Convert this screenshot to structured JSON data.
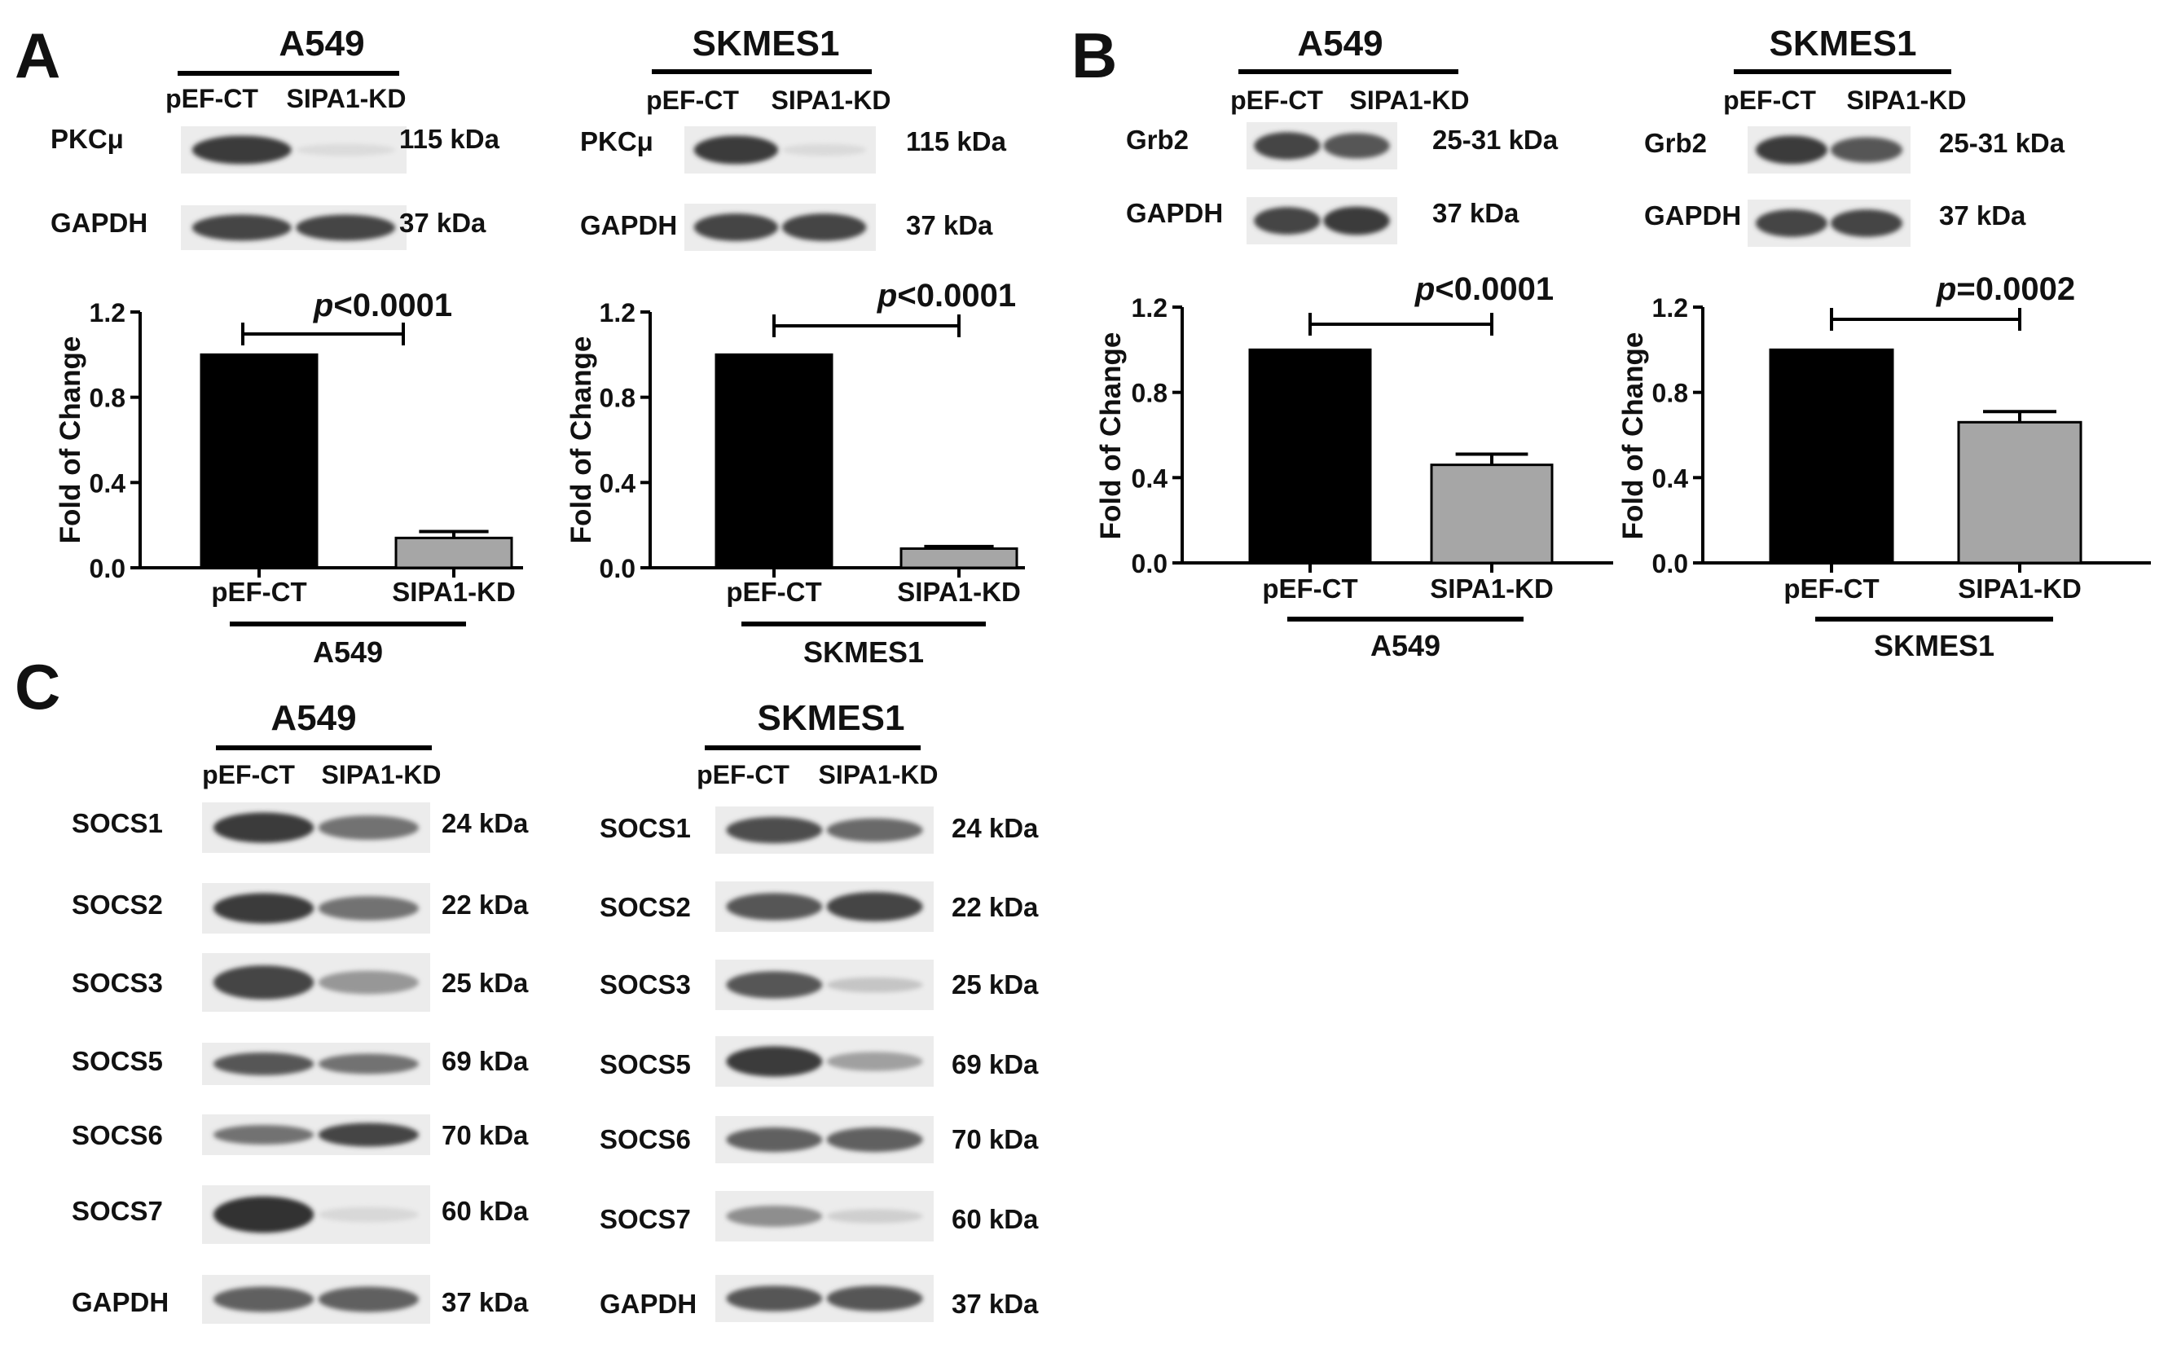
{
  "panels": {
    "A": {
      "letter": "A",
      "blots": [
        {
          "cell_line": "A549",
          "lanes": [
            "pEF-CT",
            "SIPA1-KD"
          ],
          "rows": [
            {
              "protein": "PKCμ",
              "size": "115 kDa",
              "bands": [
                0.9,
                0.03
              ]
            },
            {
              "protein": "GAPDH",
              "size": "37 kDa",
              "bands": [
                0.85,
                0.85
              ]
            }
          ]
        },
        {
          "cell_line": "SKMES1",
          "lanes": [
            "pEF-CT",
            "SIPA1-KD"
          ],
          "rows": [
            {
              "protein": "PKCμ",
              "size": "115 kDa",
              "bands": [
                0.9,
                0.04
              ]
            },
            {
              "protein": "GAPDH",
              "size": "37 kDa",
              "bands": [
                0.85,
                0.85
              ]
            }
          ]
        }
      ]
    },
    "B": {
      "letter": "B",
      "blots": [
        {
          "cell_line": "A549",
          "lanes": [
            "pEF-CT",
            "SIPA1-KD"
          ],
          "rows": [
            {
              "protein": "Grb2",
              "size": "25-31 kDa",
              "bands": [
                0.85,
                0.75
              ]
            },
            {
              "protein": "GAPDH",
              "size": "37 kDa",
              "bands": [
                0.85,
                0.9
              ]
            }
          ]
        },
        {
          "cell_line": "SKMES1",
          "lanes": [
            "pEF-CT",
            "SIPA1-KD"
          ],
          "rows": [
            {
              "protein": "Grb2",
              "size": "25-31 kDa",
              "bands": [
                0.9,
                0.75
              ]
            },
            {
              "protein": "GAPDH",
              "size": "37 kDa",
              "bands": [
                0.85,
                0.85
              ]
            }
          ]
        }
      ]
    },
    "C": {
      "letter": "C",
      "blots": [
        {
          "cell_line": "A549",
          "lanes": [
            "pEF-CT",
            "SIPA1-KD"
          ],
          "rows": [
            {
              "protein": "SOCS1",
              "size": "24 kDa",
              "bands": [
                0.9,
                0.6
              ]
            },
            {
              "protein": "SOCS2",
              "size": "22 kDa",
              "bands": [
                0.9,
                0.6
              ]
            },
            {
              "protein": "SOCS3",
              "size": "25 kDa",
              "bands": [
                0.85,
                0.4
              ]
            },
            {
              "protein": "SOCS5",
              "size": "69 kDa",
              "bands": [
                0.75,
                0.6
              ]
            },
            {
              "protein": "SOCS6",
              "size": "70 kDa",
              "bands": [
                0.6,
                0.85
              ]
            },
            {
              "protein": "SOCS7",
              "size": "60 kDa",
              "bands": [
                0.95,
                0.05
              ]
            },
            {
              "protein": "GAPDH",
              "size": "37 kDa",
              "bands": [
                0.7,
                0.7
              ]
            }
          ]
        },
        {
          "cell_line": "SKMES1",
          "lanes": [
            "pEF-CT",
            "SIPA1-KD"
          ],
          "rows": [
            {
              "protein": "SOCS1",
              "size": "24 kDa",
              "bands": [
                0.8,
                0.65
              ]
            },
            {
              "protein": "SOCS2",
              "size": "22 kDa",
              "bands": [
                0.75,
                0.85
              ]
            },
            {
              "protein": "SOCS3",
              "size": "25 kDa",
              "bands": [
                0.75,
                0.15
              ]
            },
            {
              "protein": "SOCS5",
              "size": "69 kDa",
              "bands": [
                0.9,
                0.35
              ]
            },
            {
              "protein": "SOCS6",
              "size": "70 kDa",
              "bands": [
                0.7,
                0.7
              ]
            },
            {
              "protein": "SOCS7",
              "size": "60 kDa",
              "bands": [
                0.45,
                0.1
              ]
            },
            {
              "protein": "GAPDH",
              "size": "37 kDa",
              "bands": [
                0.75,
                0.75
              ]
            }
          ]
        }
      ]
    }
  },
  "chart_data": [
    {
      "type": "bar",
      "panel": "A",
      "group_label": "A549",
      "categories": [
        "pEF-CT",
        "SIPA1-KD"
      ],
      "values": [
        1.0,
        0.14
      ],
      "errors": [
        0,
        0.03
      ],
      "ylabel": "Fold of Change",
      "ylim": [
        0,
        1.2
      ],
      "yticks": [
        "0.0",
        "0.4",
        "0.8",
        "1.2"
      ],
      "p_prefix": "p",
      "p_rest": "<0.0001",
      "bar_colors": [
        "#000000",
        "#a6a6a6"
      ]
    },
    {
      "type": "bar",
      "panel": "A",
      "group_label": "SKMES1",
      "categories": [
        "pEF-CT",
        "SIPA1-KD"
      ],
      "values": [
        1.0,
        0.09
      ],
      "errors": [
        0,
        0.01
      ],
      "ylabel": "Fold of Change",
      "ylim": [
        0,
        1.2
      ],
      "yticks": [
        "0.0",
        "0.4",
        "0.8",
        "1.2"
      ],
      "p_prefix": "p",
      "p_rest": "<0.0001",
      "bar_colors": [
        "#000000",
        "#a6a6a6"
      ]
    },
    {
      "type": "bar",
      "panel": "B",
      "group_label": "A549",
      "categories": [
        "pEF-CT",
        "SIPA1-KD"
      ],
      "values": [
        1.0,
        0.46
      ],
      "errors": [
        0,
        0.05
      ],
      "ylabel": "Fold of Change",
      "ylim": [
        0,
        1.2
      ],
      "yticks": [
        "0.0",
        "0.4",
        "0.8",
        "1.2"
      ],
      "p_prefix": "p",
      "p_rest": "<0.0001",
      "bar_colors": [
        "#000000",
        "#a6a6a6"
      ]
    },
    {
      "type": "bar",
      "panel": "B",
      "group_label": "SKMES1",
      "categories": [
        "pEF-CT",
        "SIPA1-KD"
      ],
      "values": [
        1.0,
        0.66
      ],
      "errors": [
        0,
        0.05
      ],
      "ylabel": "Fold of Change",
      "ylim": [
        0,
        1.2
      ],
      "yticks": [
        "0.0",
        "0.4",
        "0.8",
        "1.2"
      ],
      "p_prefix": "p",
      "p_rest": "=0.0002",
      "bar_colors": [
        "#000000",
        "#a6a6a6"
      ]
    }
  ]
}
